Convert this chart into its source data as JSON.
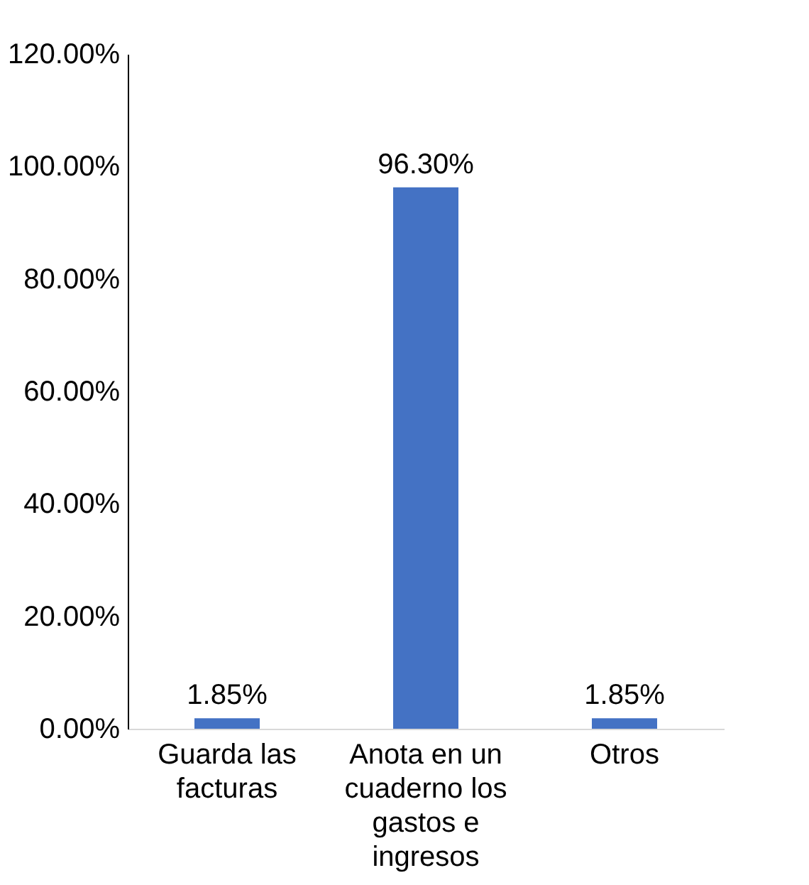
{
  "chart_data": {
    "type": "bar",
    "categories": [
      "Guarda las facturas",
      "Anota en un cuaderno los gastos e ingresos",
      "Otros"
    ],
    "values": [
      1.85,
      96.3,
      1.85
    ],
    "value_labels": [
      "1.85%",
      "96.30%",
      "1.85%"
    ],
    "color": "#4472c4",
    "ylim": [
      0,
      120
    ],
    "yticks": [
      {
        "value": 0,
        "label": "0.00%"
      },
      {
        "value": 20,
        "label": "20.00%"
      },
      {
        "value": 40,
        "label": "40.00%"
      },
      {
        "value": 60,
        "label": "60.00%"
      },
      {
        "value": 80,
        "label": "80.00%"
      },
      {
        "value": 100,
        "label": "100.00%"
      },
      {
        "value": 120,
        "label": "120.00%"
      }
    ],
    "grid": false
  }
}
